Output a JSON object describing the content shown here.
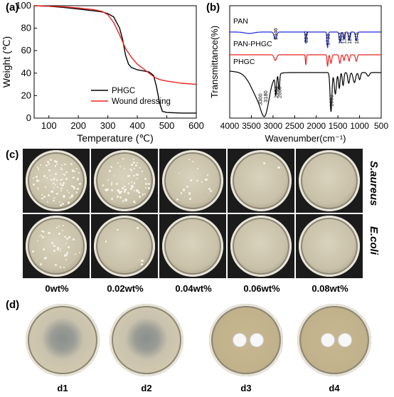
{
  "panels": {
    "a": "(a)",
    "b": "(b)",
    "c": "(c)",
    "d": "(d)"
  },
  "chart_data": [
    {
      "type": "line",
      "xlabel": "Temperature (℃)",
      "ylabel": "Weight (℃)",
      "xlim": [
        50,
        600
      ],
      "ylim": [
        0,
        100
      ],
      "xticks": [
        "100",
        "200",
        "300",
        "400",
        "500",
        "600"
      ],
      "yticks": [
        "0",
        "20",
        "40",
        "60",
        "80",
        "100"
      ],
      "legend_position": "bottom-right",
      "series": [
        {
          "name": "PHGC",
          "color": "#000000",
          "x": [
            50,
            100,
            150,
            200,
            250,
            280,
            300,
            320,
            340,
            350,
            360,
            370,
            380,
            400,
            420,
            440,
            455,
            465,
            475,
            485,
            500,
            550,
            600
          ],
          "y": [
            100,
            99.5,
            98.5,
            97,
            95.5,
            94.5,
            93,
            90,
            80,
            70,
            56,
            48,
            45,
            43,
            42,
            41,
            38,
            28,
            14,
            6,
            5,
            4.5,
            4.5
          ]
        },
        {
          "name": "Wound dressing",
          "color": "#e8231f",
          "x": [
            50,
            100,
            150,
            200,
            250,
            280,
            300,
            320,
            340,
            360,
            380,
            400,
            420,
            440,
            460,
            480,
            500,
            550,
            600
          ],
          "y": [
            100,
            99.5,
            99,
            98,
            96.5,
            95,
            92,
            85,
            74,
            62,
            54,
            48,
            44,
            40,
            36,
            34,
            33,
            31,
            30
          ]
        }
      ]
    },
    {
      "type": "line",
      "xlabel": "Wavenumber(cm⁻¹)",
      "ylabel": "Transmittance(%)",
      "xlim": [
        4000,
        500
      ],
      "xticks": [
        "4000",
        "3500",
        "3000",
        "2500",
        "2000",
        "1500",
        "1000",
        "500"
      ],
      "series": [
        {
          "name": "PAN",
          "color": "#1f2bd6"
        },
        {
          "name": "PAN-PHGC",
          "color": "#e8231f"
        },
        {
          "name": "PHGC",
          "color": "#000000"
        }
      ],
      "annotations": [
        "2946",
        "2242",
        "1738",
        "1454",
        "1360",
        "1242",
        "1075",
        "3300",
        "3180",
        "2933",
        "2860",
        "1660"
      ]
    }
  ],
  "photos": {
    "c_rows": [
      "S.aureus",
      "E.coli"
    ],
    "c_cols": [
      "0wt%",
      "0.02wt%",
      "0.04wt%",
      "0.06wt%",
      "0.08wt%"
    ],
    "d_cols": [
      "d1",
      "d2",
      "d3",
      "d4"
    ]
  }
}
